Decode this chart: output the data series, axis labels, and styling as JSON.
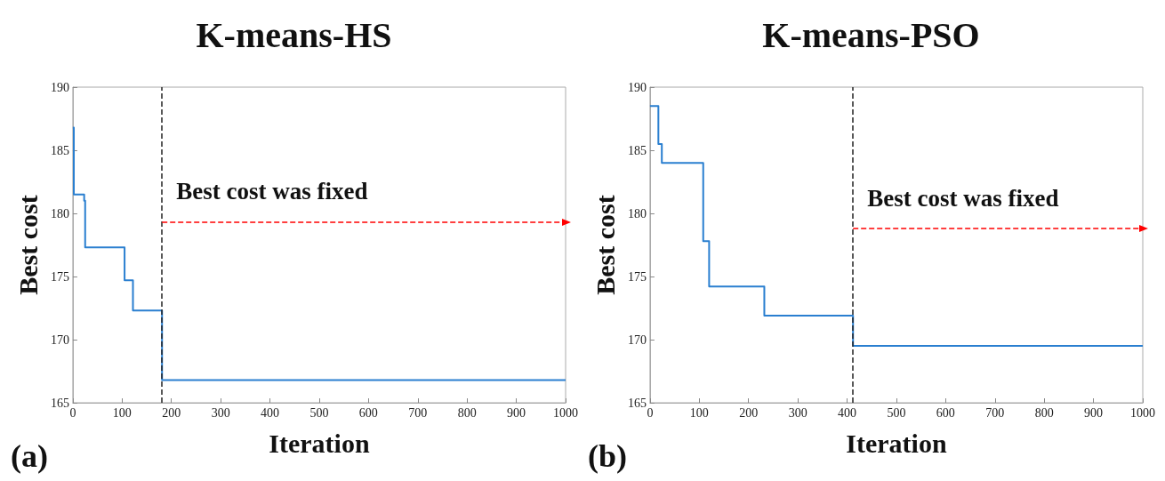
{
  "chart_data": [
    {
      "type": "step",
      "title": "K-means-HS",
      "xlabel": "Iteration",
      "ylabel": "Best cost",
      "xlim": [
        0,
        1000
      ],
      "xticks": [
        0,
        100,
        200,
        300,
        400,
        500,
        600,
        700,
        800,
        900,
        1000
      ],
      "ylim": [
        165,
        190
      ],
      "yticks": [
        165,
        170,
        175,
        180,
        185,
        190
      ],
      "grid": false,
      "marker": "none",
      "x": [
        0,
        2,
        20,
        23,
        25,
        105,
        122,
        181,
        1000
      ],
      "series": [
        {
          "color": "#2a7fd0",
          "values": [
            186.8,
            181.5,
            181.5,
            181,
            177.3,
            174.7,
            172.3,
            166.8,
            166.8
          ]
        }
      ],
      "ref_lines": [
        {
          "axis": "x",
          "value": 181,
          "label": "Best cost was fixed",
          "color": "#222222",
          "line_style": "dashed"
        },
        {
          "axis": "y",
          "value": 179.3,
          "color": "#ff0000",
          "line_style": "dashed"
        }
      ],
      "annotations": [
        "(a)"
      ]
    },
    {
      "type": "step",
      "title": "K-means-PSO",
      "xlabel": "Iteration",
      "ylabel": "Best cost",
      "xlim": [
        0,
        1000
      ],
      "xticks": [
        0,
        100,
        200,
        300,
        400,
        500,
        600,
        700,
        800,
        900,
        1000
      ],
      "ylim": [
        165,
        190
      ],
      "yticks": [
        165,
        170,
        175,
        180,
        185,
        190
      ],
      "grid": false,
      "marker": "none",
      "x": [
        0,
        17,
        24,
        108,
        120,
        232,
        412,
        1000
      ],
      "series": [
        {
          "color": "#2a7fd0",
          "values": [
            188.5,
            185.5,
            184,
            177.8,
            174.2,
            171.9,
            169.5,
            169.5
          ]
        }
      ],
      "ref_lines": [
        {
          "axis": "x",
          "value": 412,
          "label": "Best cost was fixed",
          "color": "#222222",
          "line_style": "dashed"
        },
        {
          "axis": "y",
          "value": 178.8,
          "color": "#ff0000",
          "line_style": "dashed"
        }
      ],
      "annotations": [
        "(b)"
      ]
    }
  ]
}
